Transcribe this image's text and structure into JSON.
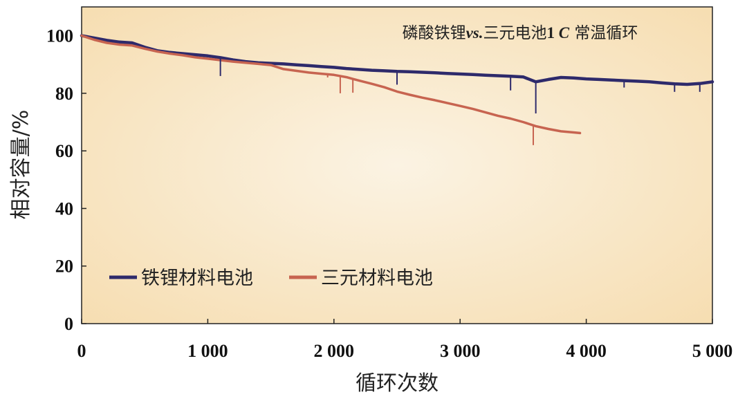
{
  "chart_data": {
    "type": "line",
    "title_parts": [
      {
        "text": "磷酸铁锂",
        "style": "normal"
      },
      {
        "text": "vs.",
        "style": "bold-italic"
      },
      {
        "text": "三元电池",
        "style": "normal"
      },
      {
        "text": "1 ",
        "style": "bold"
      },
      {
        "text": "C",
        "style": "bold-italic"
      },
      {
        "text": " 常温循环",
        "style": "normal"
      }
    ],
    "xlabel": "循环次数",
    "ylabel": "相对容量/%",
    "xlim": [
      0,
      5000
    ],
    "ylim": [
      0,
      110
    ],
    "xticks": [
      0,
      1000,
      2000,
      3000,
      4000,
      5000
    ],
    "xtick_labels": [
      "0",
      "1 000",
      "2 000",
      "3 000",
      "4 000",
      "5 000"
    ],
    "yticks": [
      0,
      20,
      40,
      60,
      80,
      100
    ],
    "ytick_labels": [
      "0",
      "20",
      "40",
      "60",
      "80",
      "100"
    ],
    "legend_position": "bottom-left",
    "grid": false,
    "background_colors": [
      "#fbf3e3",
      "#f6dcae"
    ],
    "series": [
      {
        "name": "铁锂材料电池",
        "color": "#2e2a6b",
        "x": [
          0,
          100,
          200,
          300,
          400,
          500,
          600,
          700,
          800,
          900,
          1000,
          1100,
          1200,
          1300,
          1400,
          1500,
          1600,
          1700,
          1800,
          1900,
          2000,
          2100,
          2200,
          2300,
          2400,
          2500,
          2600,
          2700,
          2800,
          2900,
          3000,
          3100,
          3200,
          3300,
          3400,
          3500,
          3600,
          3700,
          3800,
          3900,
          4000,
          4100,
          4200,
          4300,
          4400,
          4500,
          4600,
          4700,
          4800,
          4900,
          5000
        ],
        "y": [
          100,
          99.2,
          98.4,
          97.8,
          97.5,
          96,
          94.8,
          94.2,
          93.8,
          93.4,
          93,
          92.4,
          91.6,
          91,
          90.6,
          90.4,
          90.2,
          89.9,
          89.6,
          89.3,
          89,
          88.6,
          88.3,
          88,
          87.8,
          87.6,
          87.5,
          87.3,
          87.1,
          86.9,
          86.7,
          86.5,
          86.3,
          86.1,
          85.9,
          85.7,
          84,
          84.8,
          85.5,
          85.3,
          85,
          84.8,
          84.6,
          84.4,
          84.2,
          84,
          83.6,
          83.3,
          83.1,
          83.4,
          84
        ]
      },
      {
        "name": "三元材料电池",
        "color": "#c76450",
        "x": [
          0,
          100,
          200,
          300,
          400,
          500,
          600,
          700,
          800,
          900,
          1000,
          1100,
          1200,
          1300,
          1400,
          1500,
          1600,
          1700,
          1800,
          1900,
          2000,
          2100,
          2200,
          2300,
          2400,
          2500,
          2600,
          2700,
          2800,
          2900,
          3000,
          3100,
          3200,
          3300,
          3400,
          3500,
          3600,
          3700,
          3800,
          3900,
          3950
        ],
        "y": [
          100,
          98.6,
          97.5,
          96.9,
          96.6,
          95.5,
          94.5,
          93.8,
          93.2,
          92.5,
          92,
          91.5,
          91,
          90.6,
          90.2,
          89.8,
          88.4,
          87.8,
          87.2,
          86.8,
          86.4,
          85.6,
          84.4,
          83.3,
          82.1,
          80.6,
          79.5,
          78.5,
          77.6,
          76.6,
          75.6,
          74.6,
          73.4,
          72.2,
          71.2,
          70,
          68.6,
          67.6,
          66.8,
          66.4,
          66.2
        ]
      }
    ],
    "dips": [
      {
        "series": 0,
        "x": 1100,
        "y": 86
      },
      {
        "series": 0,
        "x": 2500,
        "y": 83
      },
      {
        "series": 0,
        "x": 3400,
        "y": 81
      },
      {
        "series": 0,
        "x": 3600,
        "y": 73
      },
      {
        "series": 0,
        "x": 4300,
        "y": 82
      },
      {
        "series": 0,
        "x": 4700,
        "y": 80.5
      },
      {
        "series": 0,
        "x": 4900,
        "y": 80.5
      },
      {
        "series": 1,
        "x": 2050,
        "y": 80
      },
      {
        "series": 1,
        "x": 2150,
        "y": 80.2
      },
      {
        "series": 1,
        "x": 1950,
        "y": 85.5
      },
      {
        "series": 1,
        "x": 3580,
        "y": 62
      }
    ]
  }
}
